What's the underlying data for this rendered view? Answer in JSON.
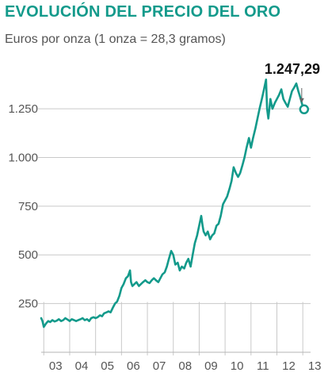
{
  "chart_data": {
    "type": "line",
    "title": "EVOLUCIÓN DEL PRECIO DEL ORO",
    "subtitle": "Euros por onza (1 onza = 28,3 gramos)",
    "xlabel": "",
    "ylabel": "",
    "xlim": [
      2002.9,
      2013.3
    ],
    "ylim": [
      0,
      1450
    ],
    "grid": {
      "vertical": true,
      "horizontal": true
    },
    "line_color": "#139a8b",
    "y_ticks": [
      {
        "value": 250,
        "label": "250"
      },
      {
        "value": 500,
        "label": "500"
      },
      {
        "value": 750,
        "label": "750"
      },
      {
        "value": 1000,
        "label": "1.000"
      },
      {
        "value": 1250,
        "label": "1.250"
      }
    ],
    "x_ticks": [
      {
        "value": 2003,
        "label": "03"
      },
      {
        "value": 2004,
        "label": "04"
      },
      {
        "value": 2005,
        "label": "05"
      },
      {
        "value": 2006,
        "label": "06"
      },
      {
        "value": 2007,
        "label": "07"
      },
      {
        "value": 2008,
        "label": "08"
      },
      {
        "value": 2009,
        "label": "09"
      },
      {
        "value": 2010,
        "label": "10"
      },
      {
        "value": 2011,
        "label": "11"
      },
      {
        "value": 2012,
        "label": "12"
      },
      {
        "value": 2013,
        "label": "13"
      }
    ],
    "series": [
      {
        "x": [
          2002.9,
          2002.95,
          2003.0,
          2003.05,
          2003.1,
          2003.17,
          2003.25,
          2003.33,
          2003.42,
          2003.5,
          2003.58,
          2003.67,
          2003.75,
          2003.83,
          2003.92,
          2004.0,
          2004.08,
          2004.17,
          2004.25,
          2004.33,
          2004.42,
          2004.5,
          2004.58,
          2004.67,
          2004.75,
          2004.83,
          2004.92,
          2005.0,
          2005.08,
          2005.17,
          2005.25,
          2005.33,
          2005.42,
          2005.5,
          2005.58,
          2005.67,
          2005.75,
          2005.83,
          2005.92,
          2006.0,
          2006.08,
          2006.17,
          2006.25,
          2006.33,
          2006.37,
          2006.42,
          2006.5,
          2006.58,
          2006.67,
          2006.75,
          2006.83,
          2006.92,
          2007.0,
          2007.08,
          2007.17,
          2007.25,
          2007.33,
          2007.42,
          2007.5,
          2007.58,
          2007.67,
          2007.75,
          2007.83,
          2007.92,
          2008.0,
          2008.08,
          2008.17,
          2008.25,
          2008.33,
          2008.42,
          2008.5,
          2008.58,
          2008.67,
          2008.75,
          2008.83,
          2008.92,
          2009.0,
          2009.08,
          2009.13,
          2009.17,
          2009.25,
          2009.33,
          2009.42,
          2009.5,
          2009.58,
          2009.67,
          2009.75,
          2009.83,
          2009.92,
          2010.0,
          2010.08,
          2010.17,
          2010.25,
          2010.33,
          2010.42,
          2010.5,
          2010.58,
          2010.67,
          2010.75,
          2010.83,
          2010.92,
          2011.0,
          2011.08,
          2011.17,
          2011.25,
          2011.33,
          2011.42,
          2011.5,
          2011.58,
          2011.62,
          2011.67,
          2011.75,
          2011.83,
          2011.92,
          2012.0,
          2012.08,
          2012.17,
          2012.25,
          2012.33,
          2012.42,
          2012.5,
          2012.58,
          2012.67,
          2012.75,
          2012.83,
          2012.92,
          2013.0,
          2013.05
        ],
        "values": [
          175,
          160,
          130,
          140,
          150,
          160,
          155,
          165,
          158,
          162,
          170,
          160,
          165,
          175,
          168,
          160,
          170,
          165,
          160,
          165,
          170,
          175,
          165,
          170,
          160,
          175,
          180,
          175,
          180,
          190,
          185,
          200,
          205,
          210,
          205,
          230,
          250,
          260,
          290,
          330,
          350,
          380,
          390,
          420,
          360,
          340,
          350,
          360,
          340,
          350,
          360,
          370,
          360,
          355,
          370,
          380,
          370,
          360,
          380,
          400,
          410,
          440,
          480,
          520,
          500,
          450,
          460,
          420,
          440,
          430,
          460,
          480,
          440,
          500,
          560,
          600,
          650,
          700,
          650,
          620,
          600,
          620,
          580,
          600,
          610,
          650,
          660,
          700,
          760,
          780,
          800,
          840,
          880,
          950,
          920,
          900,
          920,
          960,
          1000,
          1050,
          1100,
          1050,
          1100,
          1150,
          1200,
          1250,
          1300,
          1350,
          1400,
          1250,
          1200,
          1300,
          1250,
          1280,
          1300,
          1320,
          1350,
          1300,
          1280,
          1260,
          1300,
          1340,
          1360,
          1380,
          1340,
          1300,
          1260,
          1247.29
        ]
      }
    ],
    "annotation": {
      "label": "1.247,29",
      "x": 2013.05,
      "value": 1247.29
    }
  }
}
